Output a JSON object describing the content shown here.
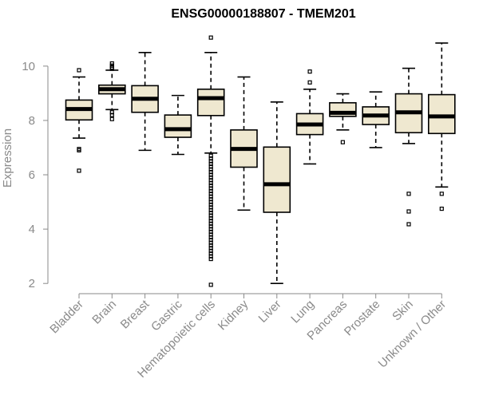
{
  "chart_data": {
    "type": "boxplot",
    "title": "ENSG00000188807 - TMEM201",
    "xlabel": "",
    "ylabel": "Expression",
    "ylim": [
      1.8,
      11.2
    ],
    "yticks": [
      2,
      4,
      6,
      8,
      10
    ],
    "box_fill": "#efe8d0",
    "stroke_color": "#000000",
    "axis_color": "#8a8a8a",
    "categories": [
      "Bladder",
      "Brain",
      "Breast",
      "Gastric",
      "Hematopoietic cells",
      "Kidney",
      "Liver",
      "Lung",
      "Pancreas",
      "Prostate",
      "Skin",
      "Unknown / Other"
    ],
    "series": [
      {
        "name": "Bladder",
        "min": 7.35,
        "q1": 8.02,
        "median": 8.42,
        "q3": 8.75,
        "max": 9.6,
        "outliers": [
          9.85,
          6.95,
          6.9,
          6.15
        ]
      },
      {
        "name": "Brain",
        "min": 8.4,
        "q1": 8.98,
        "median": 9.15,
        "q3": 9.3,
        "max": 9.85,
        "outliers": [
          10.1,
          10.02,
          9.95,
          9.9,
          8.3,
          8.2,
          8.05
        ]
      },
      {
        "name": "Breast",
        "min": 6.9,
        "q1": 8.3,
        "median": 8.8,
        "q3": 9.28,
        "max": 10.5,
        "outliers": []
      },
      {
        "name": "Gastric",
        "min": 6.75,
        "q1": 7.38,
        "median": 7.68,
        "q3": 8.2,
        "max": 8.92,
        "outliers": []
      },
      {
        "name": "Hematopoietic cells",
        "min": 6.8,
        "q1": 8.18,
        "median": 8.82,
        "q3": 9.15,
        "max": 10.5,
        "outliers": [
          11.05,
          6.7,
          6.6,
          6.5,
          6.4,
          6.3,
          6.2,
          6.1,
          6.0,
          5.9,
          5.8,
          5.7,
          5.6,
          5.5,
          5.4,
          5.3,
          5.2,
          5.1,
          5.0,
          4.9,
          4.8,
          4.7,
          4.6,
          4.5,
          4.4,
          4.3,
          4.2,
          4.1,
          4.0,
          3.9,
          3.8,
          3.7,
          3.6,
          3.5,
          3.4,
          3.3,
          3.2,
          3.1,
          3.0,
          2.9,
          1.95
        ]
      },
      {
        "name": "Kidney",
        "min": 4.7,
        "q1": 6.28,
        "median": 6.95,
        "q3": 7.65,
        "max": 9.6,
        "outliers": []
      },
      {
        "name": "Liver",
        "min": 2.0,
        "q1": 4.62,
        "median": 5.65,
        "q3": 7.02,
        "max": 8.68,
        "outliers": []
      },
      {
        "name": "Lung",
        "min": 6.4,
        "q1": 7.48,
        "median": 7.85,
        "q3": 8.25,
        "max": 9.15,
        "outliers": [
          9.8,
          9.4
        ]
      },
      {
        "name": "Pancreas",
        "min": 7.65,
        "q1": 8.15,
        "median": 8.28,
        "q3": 8.65,
        "max": 8.98,
        "outliers": [
          7.2
        ]
      },
      {
        "name": "Prostate",
        "min": 7.0,
        "q1": 7.85,
        "median": 8.18,
        "q3": 8.5,
        "max": 9.05,
        "outliers": []
      },
      {
        "name": "Skin",
        "min": 7.15,
        "q1": 7.55,
        "median": 8.3,
        "q3": 8.98,
        "max": 9.92,
        "outliers": [
          5.3,
          4.65,
          4.18
        ]
      },
      {
        "name": "Unknown / Other",
        "min": 5.55,
        "q1": 7.52,
        "median": 8.15,
        "q3": 8.95,
        "max": 10.85,
        "outliers": [
          5.3,
          4.75
        ]
      }
    ]
  }
}
